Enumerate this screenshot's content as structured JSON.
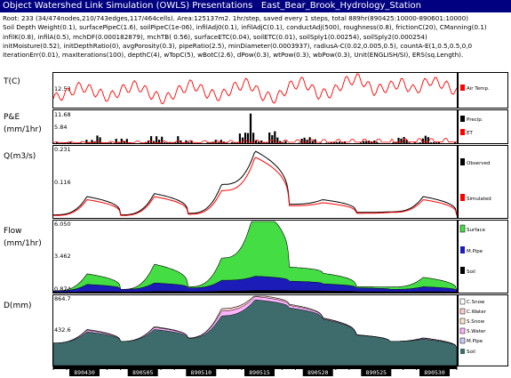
{
  "window": {
    "title": "Object Watershed Link Simulation (OWLS) Presentations",
    "station": "East_Bear_Brook_Hydrology_Station"
  },
  "info_lines": [
    "Root: 233 (34/474nodes,210/743edges,117/464cells). Area:125137m2. 1hr/step, saved every 1 steps, total 889hr(890425:10000-890601:10000)",
    "Soil Depth Weight(0.1), surfacePipeC(1.6), soilPipeC(1e-06), infilAdj0(0.1), infilAdjC(0.1), conductAdj(500), roughness(0.8), frictionC(20), CManning(0.1)",
    "infilK(0.8), infilA(0.5), mchDF(0.000182879), mchTB( 0.56), surfaceETC(0.04), soilETC(0.01), soilSply1(0.00254), soilSply2(0.000254)",
    "initMoisture(0.52), initDepthRatio(0), avgPorosity(0.3), pipeRatio(2.5), minDiameter(0.0003937), radiusA-C(0.02,0.005,0.5), countA-E(1,0.5,0.5,0,0",
    "iterationErr(0.01), maxIterations(100), depthC(4), wTopC(5), wBotC(2.6), dPow(0.3), wtPow(0.3), wbPow(0.3), Unit(ENGLISH/SI), ERS(sq.Length)."
  ],
  "x_axis": {
    "ticks": [
      "890430",
      "890505",
      "890510",
      "890515",
      "890520",
      "890525",
      "890530"
    ]
  },
  "colors": {
    "air_temp": "#ff0000",
    "precip": "#000000",
    "et": "#ff0000",
    "observed": "#000000",
    "simulated": "#ff0000",
    "surface": "#44dd44",
    "mpipe": "#1c1cb8",
    "soil": "#3e6b6b",
    "c_snow": "#ffffff",
    "c_water": "#ffcccc",
    "s_snow": "#ffe6cc",
    "s_water": "#ffb4ff",
    "m_pipe_d": "#ccccff"
  },
  "panels": [
    {
      "id": "temp",
      "label": "T(C)",
      "ticks": [
        "12.53"
      ],
      "legend": [
        "Air Temp."
      ]
    },
    {
      "id": "pe",
      "label": "P&E",
      "unit": "(mm/1hr)",
      "ticks": [
        "11.68",
        "5.84"
      ],
      "legend": [
        "Precip.",
        "ET"
      ]
    },
    {
      "id": "q",
      "label": "Q(m3/s)",
      "ticks": [
        "0.231",
        "0.116"
      ],
      "legend": [
        "Observed",
        "Simulated"
      ]
    },
    {
      "id": "flow",
      "label": "Flow",
      "unit": "(mm/1hr)",
      "ticks": [
        "6.050",
        "3.462",
        "0.874"
      ],
      "legend": [
        "Surface",
        "M.Pipe",
        "Soil"
      ]
    },
    {
      "id": "d",
      "label": "D(mm)",
      "ticks": [
        "864.7",
        "432.6"
      ],
      "legend": [
        "C.Snow",
        "C.Water",
        "S.Snow",
        "S.Water",
        "M.Pipe",
        "Soil"
      ]
    }
  ],
  "chart_data": [
    {
      "type": "line",
      "title": "T(C)",
      "series": [
        {
          "name": "Air Temp.",
          "values": [
            5.0,
            10.0,
            16.0,
            11.0,
            6.0,
            13.0,
            17.0,
            9.0,
            4.0,
            12.0,
            18.0,
            10.0,
            7.0,
            15.0,
            19.0,
            8.0,
            5.0,
            16.0,
            20.0,
            9.0,
            10.0,
            20.0,
            23.0,
            12.0,
            15.0,
            19.0,
            12.0,
            21.0,
            18.0,
            11.0
          ]
        }
      ]
    },
    {
      "type": "bar",
      "title": "P&E",
      "ylabel": "(mm/1hr)",
      "ylim": [
        0,
        11.68
      ],
      "series": [
        {
          "name": "Precip.",
          "values": [
            0.3,
            0.5,
            1.2,
            3.0,
            1.6,
            0.4,
            2.5,
            5.0,
            1.0,
            0.3,
            1.2,
            3.8,
            10.5,
            4.5,
            0.8,
            2.2,
            1.4,
            0.6,
            0.3,
            1.0,
            0.5,
            2.4,
            3.0,
            0.4,
            0.3
          ]
        },
        {
          "name": "ET",
          "values": [
            0.3,
            0.35,
            0.4,
            0.4,
            0.45,
            0.45,
            0.5,
            0.5,
            0.55,
            0.6,
            0.6,
            0.65,
            0.7,
            0.7,
            0.75,
            0.8,
            0.8,
            0.85,
            0.9,
            0.9,
            0.95,
            1.0,
            1.0,
            1.05,
            1.1
          ]
        }
      ]
    },
    {
      "type": "line",
      "title": "Q(m3/s)",
      "x": [
        "890427",
        "890501",
        "890503",
        "890507",
        "890510",
        "890512",
        "890514",
        "890515",
        "890517",
        "890521",
        "890525",
        "890528",
        "890530"
      ],
      "ylim": [
        0,
        0.231
      ],
      "series": [
        {
          "name": "Observed",
          "values": [
            0.01,
            0.07,
            0.01,
            0.08,
            0.015,
            0.11,
            0.22,
            0.045,
            0.06,
            0.018,
            0.02,
            0.07,
            0.01
          ]
        },
        {
          "name": "Simulated",
          "values": [
            0.008,
            0.06,
            0.008,
            0.07,
            0.012,
            0.09,
            0.2,
            0.04,
            0.05,
            0.015,
            0.018,
            0.06,
            0.008
          ]
        }
      ]
    },
    {
      "type": "area",
      "title": "Flow",
      "ylabel": "(mm/1hr)",
      "ylim": [
        0,
        6.05
      ],
      "series": [
        {
          "name": "Surface",
          "values": [
            0.0,
            0.9,
            0.0,
            1.6,
            0.1,
            1.9,
            6.0,
            1.2,
            0.9,
            0.1,
            0.2,
            0.8,
            0.0
          ]
        },
        {
          "name": "M.Pipe",
          "values": [
            0.1,
            0.6,
            0.2,
            0.7,
            0.3,
            0.9,
            1.2,
            0.8,
            0.6,
            0.3,
            0.2,
            0.4,
            0.1
          ]
        },
        {
          "name": "Soil",
          "values": [
            0.05,
            0.1,
            0.08,
            0.12,
            0.1,
            0.15,
            0.2,
            0.18,
            0.15,
            0.1,
            0.08,
            0.1,
            0.05
          ]
        }
      ]
    },
    {
      "type": "area",
      "title": "D(mm)",
      "ylim": [
        0,
        864.7
      ],
      "series": [
        {
          "name": "Soil",
          "values": [
            280,
            420,
            300,
            450,
            340,
            620,
            820,
            720,
            580,
            380,
            300,
            330,
            220
          ]
        },
        {
          "name": "S.Water",
          "values": [
            0,
            20,
            0,
            25,
            5,
            60,
            40,
            30,
            10,
            5,
            0,
            10,
            0
          ]
        },
        {
          "name": "C.Water",
          "values": [
            0,
            10,
            0,
            10,
            0,
            30,
            20,
            15,
            5,
            0,
            0,
            5,
            0
          ]
        }
      ]
    }
  ]
}
